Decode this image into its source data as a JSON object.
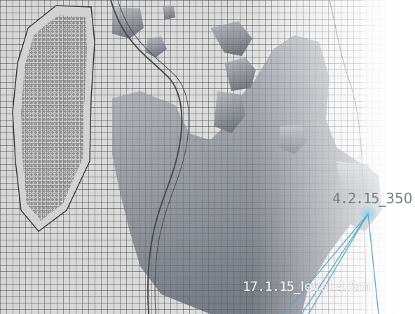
{
  "map": {
    "colors": {
      "background": "#d6d6d6",
      "grid": "#3c3c3c",
      "flood_dark": "#6f747d",
      "flood_light": "#b9bcc2",
      "connector": "#5aa7c8",
      "marker_glow": "#8fd0ec"
    }
  },
  "annotations": [
    {
      "name": "sensor-reading-upper",
      "code": "4.2.15",
      "sep": "_",
      "value": "350"
    },
    {
      "name": "sensor-reading-lower",
      "code": "17.1.15",
      "sep": "_",
      "value": "level 4.5m"
    }
  ]
}
